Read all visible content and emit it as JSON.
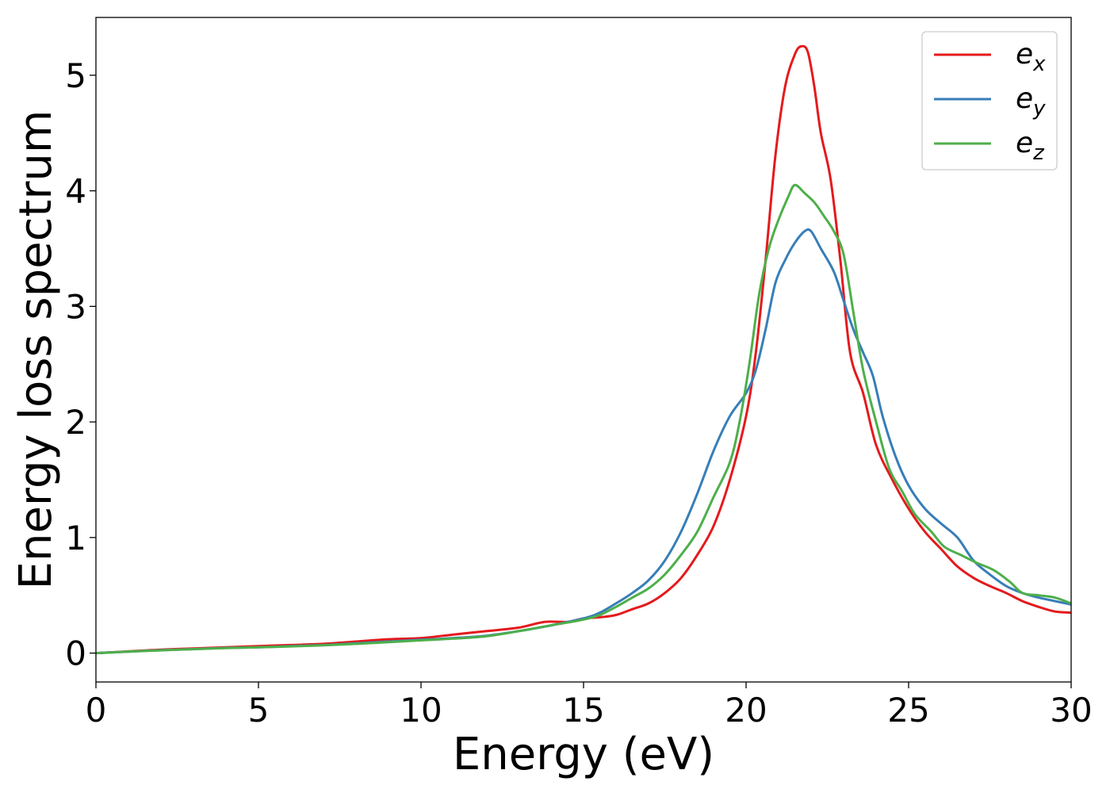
{
  "chart_data": {
    "type": "line",
    "xlabel": "Energy (eV)",
    "ylabel": "Energy loss spectrum",
    "xlim": [
      0,
      30
    ],
    "ylim": [
      -0.25,
      5.5
    ],
    "xticks": [
      0,
      5,
      10,
      15,
      20,
      25,
      30
    ],
    "yticks": [
      0,
      1,
      2,
      3,
      4,
      5
    ],
    "xtick_labels": [
      "0",
      "5",
      "10",
      "15",
      "20",
      "25",
      "30"
    ],
    "ytick_labels": [
      "0",
      "1",
      "2",
      "3",
      "4",
      "5"
    ],
    "grid": false,
    "legend_position": "top-right",
    "series": [
      {
        "name": "e_x",
        "label_base": "e",
        "label_sub": "x",
        "color": "#e41a1c",
        "points": [
          [
            0,
            0
          ],
          [
            1,
            0.015
          ],
          [
            2,
            0.03
          ],
          [
            3,
            0.04
          ],
          [
            4,
            0.05
          ],
          [
            5,
            0.06
          ],
          [
            6,
            0.07
          ],
          [
            7,
            0.08
          ],
          [
            8,
            0.1
          ],
          [
            9,
            0.12
          ],
          [
            10,
            0.13
          ],
          [
            11,
            0.16
          ],
          [
            12,
            0.19
          ],
          [
            13,
            0.22
          ],
          [
            13.8,
            0.27
          ],
          [
            14.5,
            0.27
          ],
          [
            15,
            0.3
          ],
          [
            15.5,
            0.31
          ],
          [
            16,
            0.33
          ],
          [
            16.5,
            0.38
          ],
          [
            17,
            0.43
          ],
          [
            17.5,
            0.52
          ],
          [
            18,
            0.65
          ],
          [
            18.5,
            0.85
          ],
          [
            19,
            1.1
          ],
          [
            19.5,
            1.5
          ],
          [
            20,
            2.05
          ],
          [
            20.3,
            2.6
          ],
          [
            20.6,
            3.4
          ],
          [
            20.9,
            4.3
          ],
          [
            21.2,
            4.9
          ],
          [
            21.5,
            5.18
          ],
          [
            21.7,
            5.25
          ],
          [
            21.9,
            5.2
          ],
          [
            22.1,
            4.9
          ],
          [
            22.3,
            4.5
          ],
          [
            22.6,
            4.1
          ],
          [
            22.9,
            3.4
          ],
          [
            23.2,
            2.6
          ],
          [
            23.6,
            2.25
          ],
          [
            24,
            1.8
          ],
          [
            24.5,
            1.5
          ],
          [
            25,
            1.25
          ],
          [
            25.5,
            1.05
          ],
          [
            26,
            0.9
          ],
          [
            26.5,
            0.75
          ],
          [
            27,
            0.65
          ],
          [
            27.5,
            0.58
          ],
          [
            28,
            0.52
          ],
          [
            28.5,
            0.45
          ],
          [
            29,
            0.4
          ],
          [
            29.5,
            0.36
          ],
          [
            30,
            0.35
          ]
        ]
      },
      {
        "name": "e_y",
        "label_base": "e",
        "label_sub": "y",
        "color": "#377eb8",
        "points": [
          [
            0,
            0
          ],
          [
            1,
            0.013
          ],
          [
            2,
            0.025
          ],
          [
            3,
            0.035
          ],
          [
            4,
            0.045
          ],
          [
            5,
            0.05
          ],
          [
            6,
            0.06
          ],
          [
            7,
            0.07
          ],
          [
            8,
            0.085
          ],
          [
            9,
            0.1
          ],
          [
            10,
            0.115
          ],
          [
            11,
            0.13
          ],
          [
            12,
            0.15
          ],
          [
            13,
            0.19
          ],
          [
            14,
            0.24
          ],
          [
            15,
            0.3
          ],
          [
            15.5,
            0.35
          ],
          [
            16,
            0.43
          ],
          [
            16.5,
            0.52
          ],
          [
            17,
            0.63
          ],
          [
            17.5,
            0.8
          ],
          [
            18,
            1.05
          ],
          [
            18.5,
            1.38
          ],
          [
            19,
            1.75
          ],
          [
            19.5,
            2.05
          ],
          [
            20,
            2.25
          ],
          [
            20.3,
            2.45
          ],
          [
            20.6,
            2.8
          ],
          [
            20.9,
            3.2
          ],
          [
            21.2,
            3.4
          ],
          [
            21.5,
            3.55
          ],
          [
            21.8,
            3.65
          ],
          [
            22,
            3.65
          ],
          [
            22.3,
            3.5
          ],
          [
            22.7,
            3.3
          ],
          [
            23,
            3.05
          ],
          [
            23.3,
            2.8
          ],
          [
            23.6,
            2.6
          ],
          [
            23.9,
            2.4
          ],
          [
            24.2,
            2.05
          ],
          [
            24.6,
            1.7
          ],
          [
            25,
            1.45
          ],
          [
            25.5,
            1.25
          ],
          [
            26,
            1.12
          ],
          [
            26.5,
            1.0
          ],
          [
            27,
            0.8
          ],
          [
            27.5,
            0.68
          ],
          [
            28,
            0.58
          ],
          [
            28.5,
            0.52
          ],
          [
            29,
            0.48
          ],
          [
            29.5,
            0.45
          ],
          [
            30,
            0.42
          ]
        ]
      },
      {
        "name": "e_z",
        "label_base": "e",
        "label_sub": "z",
        "color": "#4daf4a",
        "points": [
          [
            0,
            0
          ],
          [
            1,
            0.012
          ],
          [
            2,
            0.024
          ],
          [
            3,
            0.034
          ],
          [
            4,
            0.044
          ],
          [
            5,
            0.05
          ],
          [
            6,
            0.058
          ],
          [
            7,
            0.068
          ],
          [
            8,
            0.08
          ],
          [
            9,
            0.095
          ],
          [
            10,
            0.11
          ],
          [
            11,
            0.125
          ],
          [
            12,
            0.145
          ],
          [
            13,
            0.19
          ],
          [
            14,
            0.24
          ],
          [
            15,
            0.29
          ],
          [
            15.5,
            0.33
          ],
          [
            16,
            0.4
          ],
          [
            16.5,
            0.48
          ],
          [
            17,
            0.56
          ],
          [
            17.5,
            0.68
          ],
          [
            18,
            0.85
          ],
          [
            18.5,
            1.05
          ],
          [
            19,
            1.35
          ],
          [
            19.5,
            1.65
          ],
          [
            19.8,
            2.0
          ],
          [
            20.1,
            2.5
          ],
          [
            20.4,
            3.1
          ],
          [
            20.7,
            3.5
          ],
          [
            21,
            3.75
          ],
          [
            21.3,
            3.95
          ],
          [
            21.5,
            4.05
          ],
          [
            21.8,
            3.98
          ],
          [
            22.1,
            3.9
          ],
          [
            22.4,
            3.78
          ],
          [
            22.7,
            3.65
          ],
          [
            23,
            3.45
          ],
          [
            23.3,
            2.95
          ],
          [
            23.6,
            2.45
          ],
          [
            24,
            2.0
          ],
          [
            24.4,
            1.6
          ],
          [
            24.8,
            1.4
          ],
          [
            25.2,
            1.2
          ],
          [
            25.7,
            1.05
          ],
          [
            26.1,
            0.92
          ],
          [
            26.6,
            0.85
          ],
          [
            27.1,
            0.78
          ],
          [
            27.6,
            0.72
          ],
          [
            28.1,
            0.62
          ],
          [
            28.5,
            0.52
          ],
          [
            29,
            0.5
          ],
          [
            29.5,
            0.48
          ],
          [
            30,
            0.43
          ]
        ]
      }
    ]
  }
}
